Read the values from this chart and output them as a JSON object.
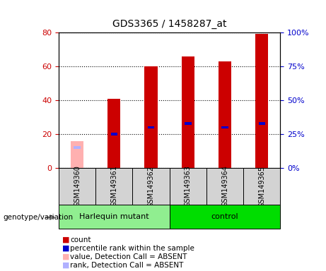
{
  "title": "GDS3365 / 1458287_at",
  "samples": [
    "GSM149360",
    "GSM149361",
    "GSM149362",
    "GSM149363",
    "GSM149364",
    "GSM149365"
  ],
  "count_values": [
    0,
    41,
    60,
    66,
    63,
    79
  ],
  "rank_values": [
    0,
    25,
    30,
    33,
    30,
    33
  ],
  "absent_value": [
    16,
    0,
    0,
    0,
    0,
    0
  ],
  "absent_rank": [
    15,
    0,
    0,
    0,
    0,
    0
  ],
  "is_absent": [
    true,
    false,
    false,
    false,
    false,
    false
  ],
  "ylim_left": [
    0,
    80
  ],
  "ylim_right": [
    0,
    100
  ],
  "yticks_left": [
    0,
    20,
    40,
    60,
    80
  ],
  "yticks_right": [
    0,
    25,
    50,
    75,
    100
  ],
  "bar_width": 0.35,
  "rank_bar_width": 0.18,
  "rank_bar_height": 1.5,
  "red_color": "#cc0000",
  "blue_color": "#0000cc",
  "pink_color": "#ffb0b0",
  "lavender_color": "#b0b0ff",
  "bg_color": "#d3d3d3",
  "harlequin_color": "#90EE90",
  "control_color": "#00dd00",
  "group_label": "genotype/variation",
  "legend_items": [
    {
      "color": "#cc0000",
      "label": "count"
    },
    {
      "color": "#0000cc",
      "label": "percentile rank within the sample"
    },
    {
      "color": "#ffb0b0",
      "label": "value, Detection Call = ABSENT"
    },
    {
      "color": "#b0b0ff",
      "label": "rank, Detection Call = ABSENT"
    }
  ]
}
